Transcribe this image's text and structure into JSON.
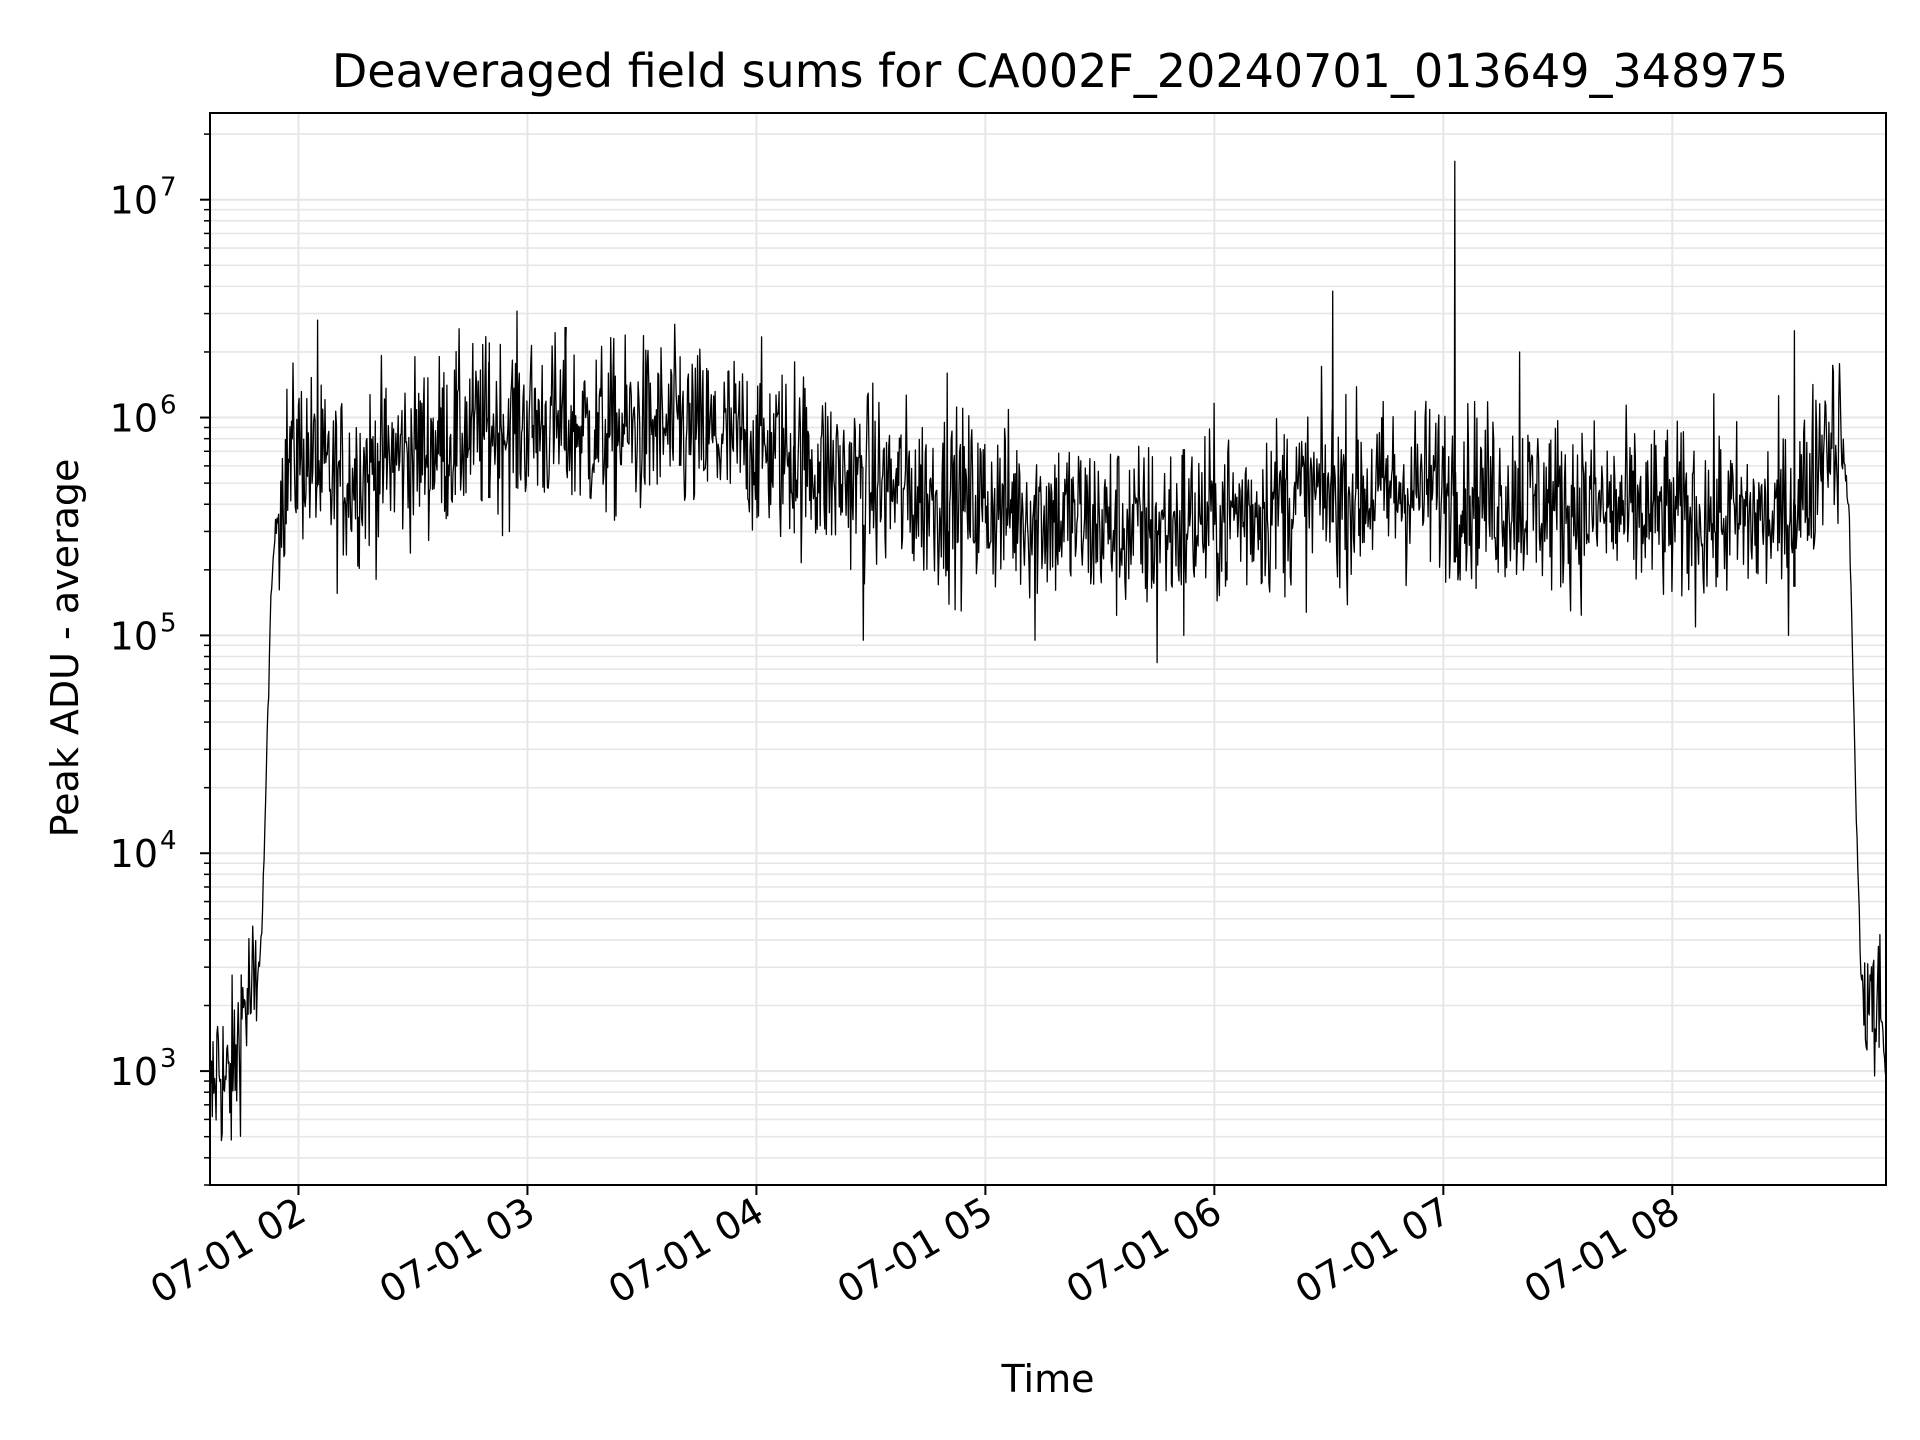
{
  "chart_data": {
    "type": "line",
    "title": "Deaveraged field sums for CA002F_20240701_013649_348975",
    "xlabel": "Time",
    "ylabel": "Peak ADU - average",
    "xlim": [
      "2024-07-01T01:36:49",
      "2024-07-01T08:56:00"
    ],
    "ylim": [
      300,
      25000000
    ],
    "yscale": "log",
    "grid": true,
    "x_tick_labels": [
      "07-01 02",
      "07-01 03",
      "07-01 04",
      "07-01 05",
      "07-01 06",
      "07-01 07",
      "07-01 08"
    ],
    "x_ticks": [
      "2024-07-01T02:00",
      "2024-07-01T03:00",
      "2024-07-01T04:00",
      "2024-07-01T05:00",
      "2024-07-01T06:00",
      "2024-07-01T07:00",
      "2024-07-01T08:00"
    ],
    "y_ticks": [
      {
        "base": "10",
        "exp": "3",
        "value": 1000
      },
      {
        "base": "10",
        "exp": "4",
        "value": 10000
      },
      {
        "base": "10",
        "exp": "5",
        "value": 100000
      },
      {
        "base": "10",
        "exp": "6",
        "value": 1000000
      },
      {
        "base": "10",
        "exp": "7",
        "value": 10000000
      }
    ],
    "line_color": "#000000",
    "grid_color": "#e6e6e6",
    "series": [
      {
        "x": [
          "2024-07-01T01:36:49",
          "2024-07-01T01:39:00",
          "2024-07-01T01:41:00",
          "2024-07-01T01:43:00",
          "2024-07-01T01:45:00",
          "2024-07-01T01:47:00",
          "2024-07-01T01:49:00",
          "2024-07-01T01:50:30",
          "2024-07-01T01:51:30",
          "2024-07-01T01:52:30",
          "2024-07-01T01:53:30",
          "2024-07-01T01:55:00",
          "2024-07-01T01:57:00",
          "2024-07-01T02:00:00",
          "2024-07-01T02:03:00",
          "2024-07-01T02:05:00",
          "2024-07-01T02:10:00",
          "2024-07-01T02:20:00",
          "2024-07-01T02:30:00",
          "2024-07-01T02:40:00",
          "2024-07-01T02:50:00",
          "2024-07-01T03:00:00",
          "2024-07-01T03:10:00",
          "2024-07-01T03:20:00",
          "2024-07-01T03:30:00",
          "2024-07-01T03:40:00",
          "2024-07-01T03:50:00",
          "2024-07-01T04:00:00",
          "2024-07-01T04:10:00",
          "2024-07-01T04:20:00",
          "2024-07-01T04:30:00",
          "2024-07-01T04:40:00",
          "2024-07-01T04:50:00",
          "2024-07-01T05:00:00",
          "2024-07-01T05:10:00",
          "2024-07-01T05:20:00",
          "2024-07-01T05:30:00",
          "2024-07-01T05:40:00",
          "2024-07-01T05:50:00",
          "2024-07-01T06:00:00",
          "2024-07-01T06:10:00",
          "2024-07-01T06:20:00",
          "2024-07-01T06:30:00",
          "2024-07-01T06:40:00",
          "2024-07-01T06:50:00",
          "2024-07-01T07:00:00",
          "2024-07-01T07:10:00",
          "2024-07-01T07:20:00",
          "2024-07-01T07:30:00",
          "2024-07-01T07:40:00",
          "2024-07-01T07:50:00",
          "2024-07-01T08:00:00",
          "2024-07-01T08:10:00",
          "2024-07-01T08:20:00",
          "2024-07-01T08:30:00",
          "2024-07-01T08:36:00",
          "2024-07-01T08:40:00",
          "2024-07-01T08:43:00",
          "2024-07-01T08:45:00",
          "2024-07-01T08:46:30",
          "2024-07-01T08:47:30",
          "2024-07-01T08:48:30",
          "2024-07-01T08:49:30",
          "2024-07-01T08:51:00",
          "2024-07-01T08:53:00",
          "2024-07-01T08:55:00",
          "2024-07-01T08:56:00"
        ],
        "y": [
          600,
          1200,
          800,
          1000,
          1800,
          2200,
          2100,
          5000,
          20000,
          100000,
          250000,
          420000,
          600000,
          700000,
          650000,
          550000,
          500000,
          600000,
          700000,
          800000,
          900000,
          950000,
          900000,
          850000,
          900000,
          850000,
          800000,
          750000,
          650000,
          550000,
          500000,
          450000,
          420000,
          400000,
          380000,
          350000,
          320000,
          300000,
          320000,
          350000,
          380000,
          420000,
          450000,
          450000,
          470000,
          480000,
          450000,
          420000,
          400000,
          380000,
          360000,
          350000,
          350000,
          340000,
          340000,
          500000,
          850000,
          880000,
          700000,
          300000,
          50000,
          10000,
          2500,
          2300,
          2100,
          1700,
          900
        ],
        "noise_dex": 0.2,
        "spikes": [
          {
            "x": "2024-07-01T02:05:00",
            "y": 2800000
          },
          {
            "x": "2024-07-01T02:50:00",
            "y": 2200000
          },
          {
            "x": "2024-07-01T03:10:00",
            "y": 2000000
          },
          {
            "x": "2024-07-01T03:40:00",
            "y": 1900000
          },
          {
            "x": "2024-07-01T04:10:00",
            "y": 1800000
          },
          {
            "x": "2024-07-01T04:50:00",
            "y": 1600000
          },
          {
            "x": "2024-07-01T06:31:00",
            "y": 3800000
          },
          {
            "x": "2024-07-01T07:03:00",
            "y": 15000000
          },
          {
            "x": "2024-07-01T07:20:00",
            "y": 2000000
          },
          {
            "x": "2024-07-01T08:32:00",
            "y": 2500000
          }
        ],
        "dips": [
          {
            "x": "2024-07-01T04:28:00",
            "y": 95000
          },
          {
            "x": "2024-07-01T05:13:00",
            "y": 95000
          },
          {
            "x": "2024-07-01T05:45:00",
            "y": 75000
          },
          {
            "x": "2024-07-01T05:52:00",
            "y": 100000
          },
          {
            "x": "2024-07-01T08:53:00",
            "y": 950
          }
        ]
      }
    ]
  }
}
